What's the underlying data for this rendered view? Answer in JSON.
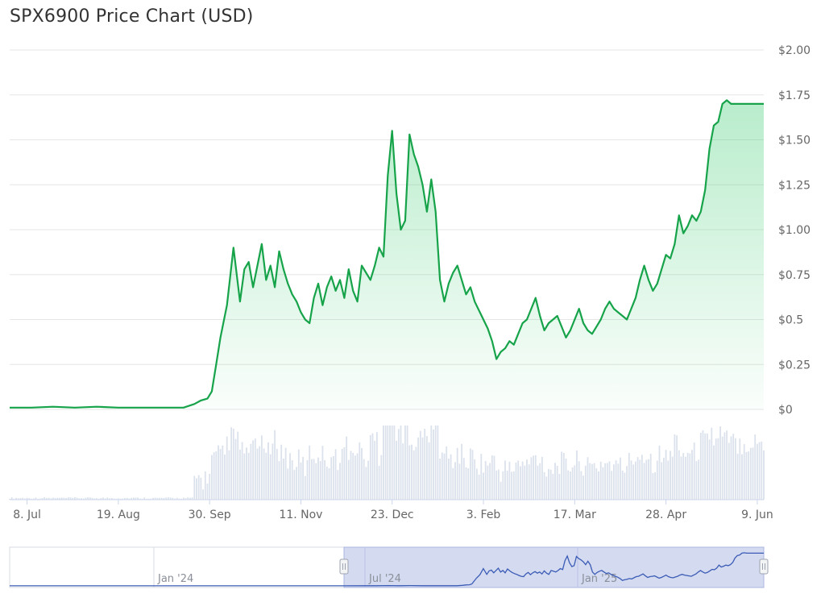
{
  "title": "SPX6900 Price Chart (USD)",
  "chart_data": {
    "type": "area",
    "title": "SPX6900 Price Chart (USD)",
    "currency": "USD",
    "y_tick_labels": [
      "$0",
      "$0.25",
      "$0.5",
      "$0.75",
      "$1.00",
      "$1.25",
      "$1.50",
      "$1.75",
      "$2.00"
    ],
    "ylim": [
      0,
      2.0
    ],
    "x_tick_labels": [
      "8. Jul",
      "19. Aug",
      "30. Sep",
      "11. Nov",
      "23. Dec",
      "3. Feb",
      "17. Mar",
      "28. Apr",
      "9. Jun"
    ],
    "x_tick_days": [
      8,
      50,
      92,
      134,
      176,
      218,
      260,
      302,
      344
    ],
    "grid": "horizontal",
    "line_color": "#16a34a",
    "fill_color": "#22c55e",
    "volume_color": "#cbd5e1",
    "price_series": {
      "name": "Price",
      "x_day_since_1_jul": [
        0,
        10,
        20,
        30,
        40,
        50,
        60,
        70,
        80,
        85,
        88,
        91,
        93,
        95,
        97,
        100,
        103,
        106,
        108,
        110,
        112,
        114,
        116,
        118,
        120,
        122,
        124,
        126,
        128,
        130,
        132,
        134,
        136,
        138,
        140,
        142,
        144,
        146,
        148,
        150,
        152,
        154,
        156,
        158,
        160,
        162,
        164,
        166,
        168,
        170,
        172,
        174,
        176,
        178,
        180,
        182,
        184,
        186,
        188,
        190,
        192,
        194,
        196,
        198,
        200,
        202,
        204,
        206,
        208,
        210,
        212,
        214,
        216,
        218,
        220,
        222,
        224,
        226,
        228,
        230,
        232,
        234,
        236,
        238,
        240,
        242,
        244,
        246,
        248,
        250,
        252,
        254,
        256,
        258,
        260,
        262,
        264,
        266,
        268,
        270,
        272,
        274,
        276,
        278,
        280,
        282,
        284,
        286,
        288,
        290,
        292,
        294,
        296,
        298,
        300,
        302,
        304,
        306,
        308,
        310,
        312,
        314,
        316,
        318,
        320,
        322,
        324,
        326,
        328,
        330,
        332,
        334,
        336,
        338,
        340,
        342,
        344,
        346,
        347
      ],
      "values": [
        0.01,
        0.01,
        0.015,
        0.01,
        0.015,
        0.01,
        0.01,
        0.01,
        0.01,
        0.03,
        0.05,
        0.06,
        0.1,
        0.25,
        0.4,
        0.58,
        0.9,
        0.6,
        0.78,
        0.82,
        0.68,
        0.8,
        0.92,
        0.72,
        0.8,
        0.68,
        0.88,
        0.78,
        0.7,
        0.64,
        0.6,
        0.54,
        0.5,
        0.48,
        0.62,
        0.7,
        0.58,
        0.68,
        0.74,
        0.66,
        0.72,
        0.62,
        0.78,
        0.66,
        0.6,
        0.8,
        0.76,
        0.72,
        0.8,
        0.9,
        0.85,
        1.3,
        1.55,
        1.2,
        1.0,
        1.05,
        1.53,
        1.42,
        1.35,
        1.25,
        1.1,
        1.28,
        1.1,
        0.72,
        0.6,
        0.7,
        0.76,
        0.8,
        0.72,
        0.64,
        0.68,
        0.6,
        0.55,
        0.5,
        0.45,
        0.38,
        0.28,
        0.32,
        0.34,
        0.38,
        0.36,
        0.42,
        0.48,
        0.5,
        0.56,
        0.62,
        0.52,
        0.44,
        0.48,
        0.5,
        0.52,
        0.46,
        0.4,
        0.44,
        0.5,
        0.56,
        0.48,
        0.44,
        0.42,
        0.46,
        0.5,
        0.56,
        0.6,
        0.56,
        0.54,
        0.52,
        0.5,
        0.56,
        0.62,
        0.72,
        0.8,
        0.72,
        0.66,
        0.7,
        0.78,
        0.86,
        0.84,
        0.92,
        1.08,
        0.98,
        1.02,
        1.08,
        1.05,
        1.1,
        1.22,
        1.45,
        1.58,
        1.6,
        1.7,
        1.72,
        1.7,
        1.7,
        1.7,
        1.7,
        1.7,
        1.7,
        1.7,
        1.7,
        1.7
      ]
    },
    "volume_series": {
      "name": "Volume"
    },
    "navigator": {
      "labels": [
        "Jan '24",
        "Jul '24",
        "Jan '25"
      ],
      "range_start_label": "",
      "range_end_label": ""
    }
  }
}
